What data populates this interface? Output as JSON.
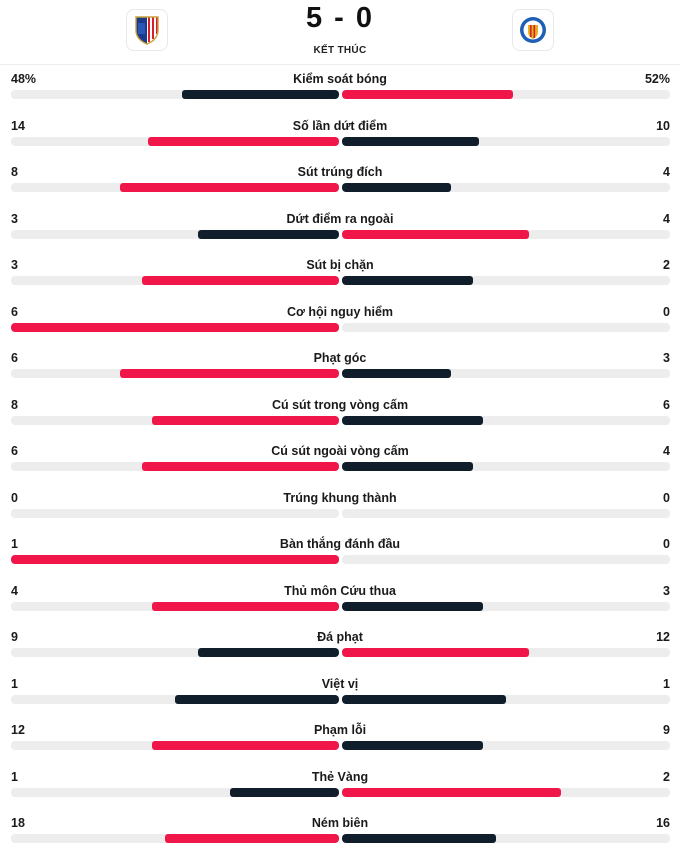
{
  "match": {
    "home_team": "Atletico Madrid",
    "away_team": "Getafe",
    "score": "5 - 0",
    "status": "KẾT THÚC"
  },
  "colors": {
    "leader": "#f0164a",
    "trailer": "#0f1e2a",
    "track": "#ededed"
  },
  "stats": [
    {
      "label": "Kiểm soát bóng",
      "home": "48%",
      "away": "52%",
      "home_value": 48,
      "away_value": 52,
      "max": 100
    },
    {
      "label": "Số lần dứt điểm",
      "home": "14",
      "away": "10",
      "home_value": 14,
      "away_value": 10
    },
    {
      "label": "Sút trúng đích",
      "home": "8",
      "away": "4",
      "home_value": 8,
      "away_value": 4
    },
    {
      "label": "Dứt điểm ra ngoài",
      "home": "3",
      "away": "4",
      "home_value": 3,
      "away_value": 4
    },
    {
      "label": "Sút bị chặn",
      "home": "3",
      "away": "2",
      "home_value": 3,
      "away_value": 2
    },
    {
      "label": "Cơ hội nguy hiểm",
      "home": "6",
      "away": "0",
      "home_value": 6,
      "away_value": 0
    },
    {
      "label": "Phạt góc",
      "home": "6",
      "away": "3",
      "home_value": 6,
      "away_value": 3
    },
    {
      "label": "Cú sút trong vòng cấm",
      "home": "8",
      "away": "6",
      "home_value": 8,
      "away_value": 6
    },
    {
      "label": "Cú sút ngoài vòng cấm",
      "home": "6",
      "away": "4",
      "home_value": 6,
      "away_value": 4
    },
    {
      "label": "Trúng khung thành",
      "home": "0",
      "away": "0",
      "home_value": 0,
      "away_value": 0
    },
    {
      "label": "Bàn thắng đánh đầu",
      "home": "1",
      "away": "0",
      "home_value": 1,
      "away_value": 0
    },
    {
      "label": "Thủ môn Cứu thua",
      "home": "4",
      "away": "3",
      "home_value": 4,
      "away_value": 3
    },
    {
      "label": "Đá phạt",
      "home": "9",
      "away": "12",
      "home_value": 9,
      "away_value": 12
    },
    {
      "label": "Việt vị",
      "home": "1",
      "away": "1",
      "home_value": 1,
      "away_value": 1
    },
    {
      "label": "Phạm lỗi",
      "home": "12",
      "away": "9",
      "home_value": 12,
      "away_value": 9
    },
    {
      "label": "Thẻ Vàng",
      "home": "1",
      "away": "2",
      "home_value": 1,
      "away_value": 2
    },
    {
      "label": "Ném biên",
      "home": "18",
      "away": "16",
      "home_value": 18,
      "away_value": 16
    }
  ]
}
